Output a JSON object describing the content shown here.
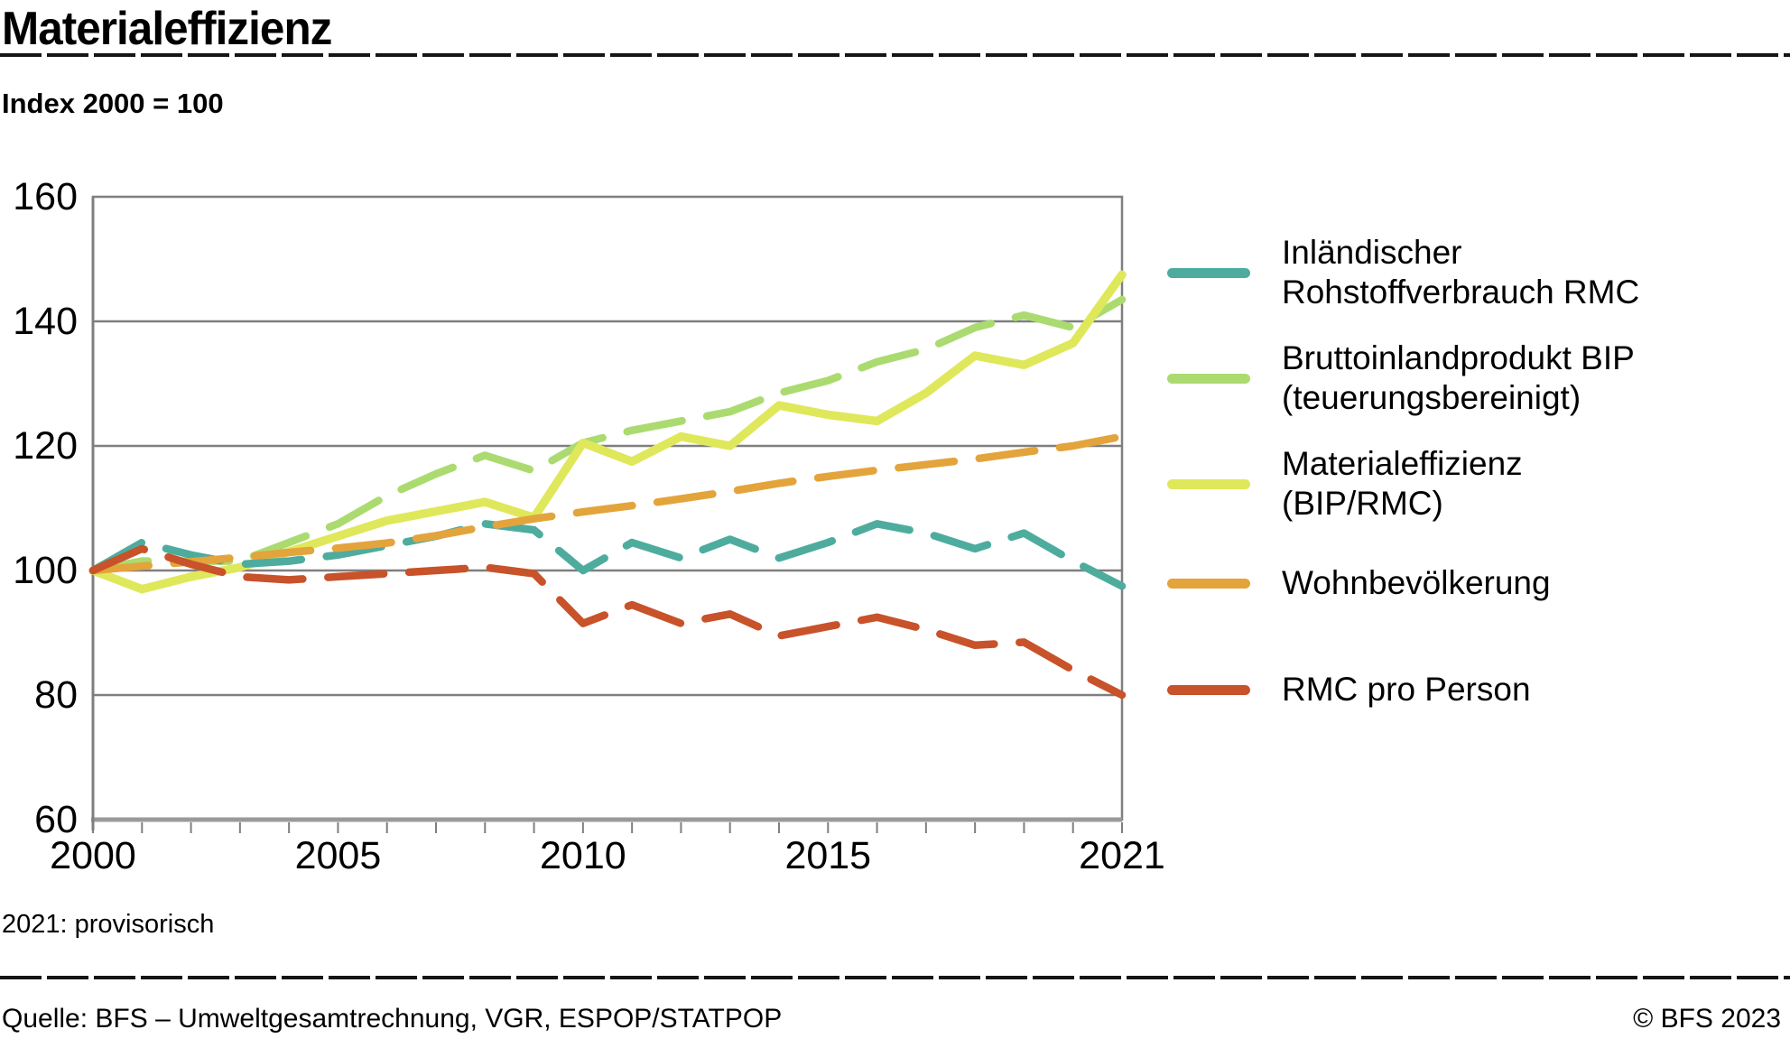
{
  "header": {
    "title": "Materialeffizienz",
    "subtitle": "Index 2000 = 100"
  },
  "footer": {
    "note": "2021: provisorisch",
    "source": "Quelle: BFS – Umweltgesamtrechnung, VGR, ESPOP/STATPOP",
    "copyright": "© BFS 2023"
  },
  "colors": {
    "grid": "#7f7f7f",
    "axis": "#9a9a9a",
    "text": "#000000"
  },
  "chart_data": {
    "type": "line",
    "title": "Materialeffizienz",
    "ylabel": "Index 2000 = 100",
    "ylim": [
      60,
      160
    ],
    "y_ticks": [
      60,
      80,
      100,
      120,
      140,
      160
    ],
    "x_ticks_labeled": [
      "2000",
      "2005",
      "2010",
      "2015",
      "2021"
    ],
    "x_ticks_labeled_years": [
      2000,
      2005,
      2010,
      2015,
      2021
    ],
    "grid": true,
    "legend_position": "right",
    "years": [
      2000,
      2001,
      2002,
      2003,
      2004,
      2005,
      2006,
      2007,
      2008,
      2009,
      2010,
      2011,
      2012,
      2013,
      2014,
      2015,
      2016,
      2017,
      2018,
      2019,
      2020,
      2021
    ],
    "draw_order": [
      1,
      2,
      0,
      3,
      4
    ],
    "series": [
      {
        "name": "Inländischer Rohstoffverbrauch RMC",
        "legend_lines": [
          "Inländischer",
          "Rohstoffverbrauch RMC"
        ],
        "color": "#4DAC9E",
        "dashed": true,
        "values": [
          100,
          104.5,
          102.5,
          101,
          101.5,
          102.5,
          104,
          105.5,
          107.5,
          106.5,
          100,
          104.5,
          102,
          105,
          102,
          104.5,
          107.5,
          106,
          103.5,
          106,
          101.5,
          97.5
        ]
      },
      {
        "name": "Bruttoinlandprodukt BIP (teuerungsbereinigt)",
        "legend_lines": [
          "Bruttoinlandprodukt BIP",
          "(teuerungsbereinigt)"
        ],
        "color": "#ABDB70",
        "dashed": true,
        "values": [
          100,
          101.5,
          101.5,
          101.5,
          104.5,
          107.5,
          112,
          115.5,
          118.5,
          116,
          120.5,
          122.5,
          124,
          125.5,
          128.5,
          130.5,
          133.5,
          135.5,
          139,
          141,
          139,
          143.5
        ]
      },
      {
        "name": "Materialeffizienz (BIP/RMC)",
        "legend_lines": [
          "Materialeffizienz",
          "(BIP/RMC)"
        ],
        "color": "#DFE85A",
        "dashed": false,
        "values": [
          100,
          97,
          99,
          100.5,
          103,
          105.5,
          108,
          109.5,
          111,
          108.5,
          120.5,
          117.5,
          121.5,
          120,
          126.5,
          125,
          124,
          128.5,
          134.5,
          133,
          136.5,
          147.5
        ]
      },
      {
        "name": "Wohnbevölkerung",
        "legend_lines": [
          "Wohnbevölkerung"
        ],
        "color": "#E3A43C",
        "dashed": true,
        "values": [
          100,
          100.7,
          101.4,
          102.1,
          102.9,
          103.6,
          104.4,
          105.6,
          107,
          108.3,
          109.4,
          110.4,
          111.5,
          112.7,
          114,
          115.1,
          116.1,
          117,
          117.9,
          119,
          120,
          121.5
        ]
      },
      {
        "name": "RMC pro Person",
        "legend_lines": [
          "RMC pro Person"
        ],
        "color": "#C8522A",
        "dashed": true,
        "values": [
          100,
          103.5,
          101,
          99,
          98.5,
          99,
          99.5,
          100,
          100.5,
          99.5,
          91.5,
          94.5,
          91.5,
          93,
          89.5,
          91,
          92.5,
          90.5,
          88,
          88.5,
          84,
          80
        ]
      }
    ]
  }
}
